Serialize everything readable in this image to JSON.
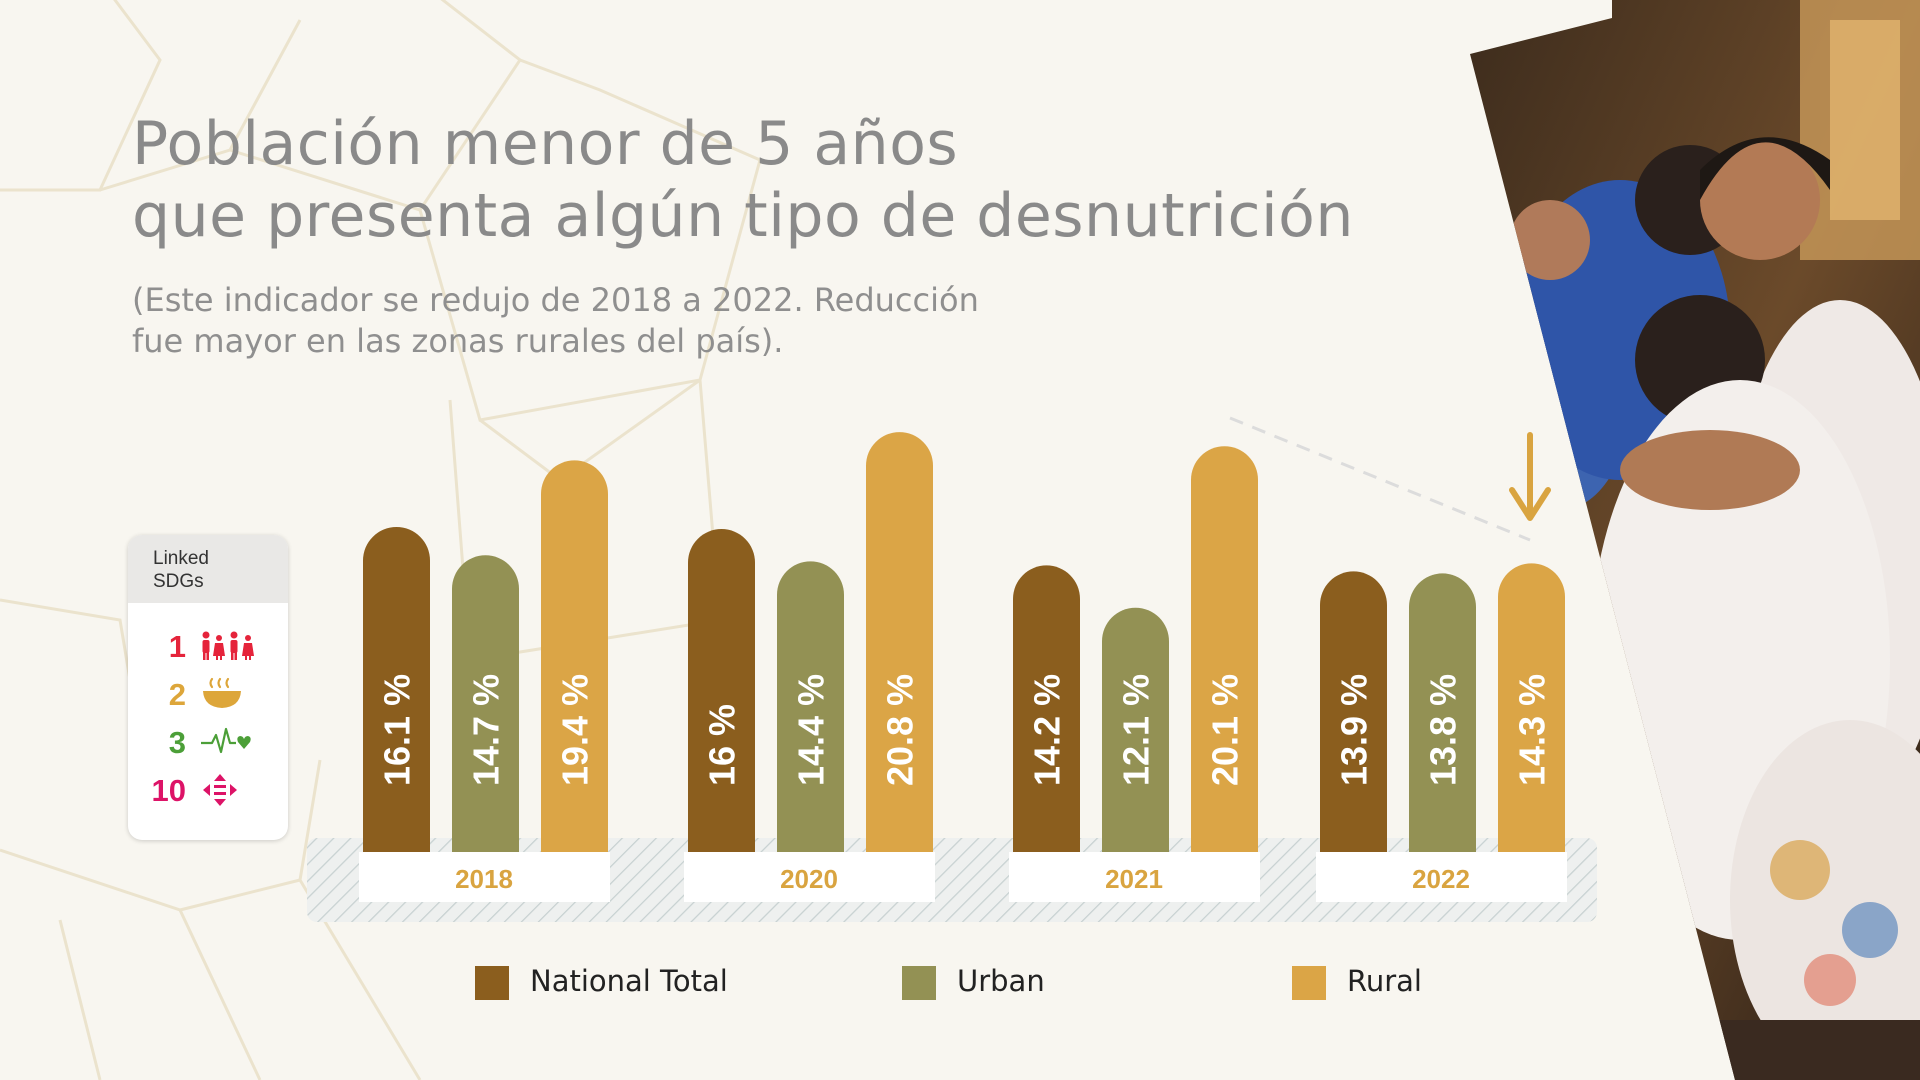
{
  "title": {
    "line1": "Población menor de 5 años",
    "line2": "que presenta algún tipo de desnutrición"
  },
  "subtitle": {
    "line1": "(Este indicador se redujo de 2018 a 2022. Reducción",
    "line2": "fue mayor en las zonas rurales del país)."
  },
  "sdg_card": {
    "heading_line1": "Linked",
    "heading_line2": "SDGs",
    "items": [
      {
        "number": "1",
        "icon": "family-icon",
        "color": "#e5243b"
      },
      {
        "number": "2",
        "icon": "food-bowl-icon",
        "color": "#dda63a"
      },
      {
        "number": "3",
        "icon": "heartbeat-icon",
        "color": "#4c9f38"
      },
      {
        "number": "10",
        "icon": "reduced-inequalities-icon",
        "color": "#dd1367"
      }
    ]
  },
  "colors": {
    "national_total": "#8b5e1e",
    "urban": "#939154",
    "rural": "#dba546",
    "year_label": "#d9a440",
    "background": "#f8f6f0"
  },
  "chart_data": {
    "type": "bar",
    "categories": [
      "2018",
      "2020",
      "2021",
      "2022"
    ],
    "series": [
      {
        "name": "National Total",
        "values": [
          16.1,
          16,
          14.2,
          13.9
        ],
        "labels": [
          "16.1 %",
          "16 %",
          "14.2 %",
          "13.9 %"
        ]
      },
      {
        "name": "Urban",
        "values": [
          14.7,
          14.4,
          12.1,
          13.8
        ],
        "labels": [
          "14.7 %",
          "14.4 %",
          "12.1 %",
          "13.8 %"
        ]
      },
      {
        "name": "Rural",
        "values": [
          19.4,
          20.8,
          20.1,
          14.3
        ],
        "labels": [
          "19.4 %",
          "20.8 %",
          "20.1 %",
          "14.3 %"
        ]
      }
    ],
    "ylim": [
      0,
      21.5
    ],
    "grid": false,
    "legend_placement": "bottom",
    "annotations": {
      "trend": "downward arrow on Rural 2022"
    }
  }
}
